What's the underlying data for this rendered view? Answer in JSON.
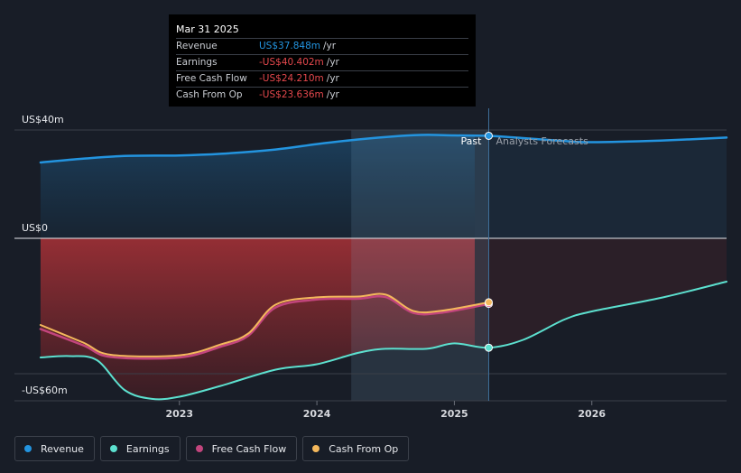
{
  "chart_data": {
    "type": "area",
    "title": "",
    "unit": "US$m",
    "y_axis_labels": [
      "US$40m",
      "US$0",
      "-US$60m"
    ],
    "ylim": [
      -60,
      40
    ],
    "x_ticks": [
      "2023",
      "2024",
      "2025",
      "2026"
    ],
    "x_tick_values": [
      2023.0,
      2024.0,
      2025.0,
      2026.0
    ],
    "xlim": [
      2021.8,
      2026.98
    ],
    "past_label": "Past",
    "forecast_label": "Analysts Forecasts",
    "past_end": 2025.25,
    "highlight_start": 2024.25,
    "series": [
      {
        "name": "Revenue",
        "color": "#2394df",
        "values": [
          [
            2021.99,
            28
          ],
          [
            2022.3,
            29.4
          ],
          [
            2022.6,
            30.4
          ],
          [
            2023.0,
            30.6
          ],
          [
            2023.3,
            31.2
          ],
          [
            2023.7,
            32.8
          ],
          [
            2024.0,
            34.8
          ],
          [
            2024.3,
            36.5
          ],
          [
            2024.6,
            37.8
          ],
          [
            2024.8,
            38.2
          ],
          [
            2025.0,
            38.0
          ],
          [
            2025.25,
            37.85
          ],
          [
            2025.5,
            37.0
          ],
          [
            2025.8,
            35.9
          ],
          [
            2026.0,
            35.5
          ],
          [
            2026.5,
            36.1
          ],
          [
            2026.98,
            37.2
          ]
        ]
      },
      {
        "name": "Earnings",
        "color": "#5ce0cf",
        "values": [
          [
            2021.99,
            -44
          ],
          [
            2022.2,
            -43.5
          ],
          [
            2022.4,
            -45
          ],
          [
            2022.6,
            -56
          ],
          [
            2022.8,
            -59.3
          ],
          [
            2023.0,
            -58.5
          ],
          [
            2023.3,
            -54.5
          ],
          [
            2023.7,
            -48.5
          ],
          [
            2024.0,
            -46.5
          ],
          [
            2024.3,
            -42.3
          ],
          [
            2024.5,
            -40.8
          ],
          [
            2024.8,
            -40.8
          ],
          [
            2025.0,
            -38.8
          ],
          [
            2025.25,
            -40.4
          ],
          [
            2025.5,
            -37.5
          ],
          [
            2025.8,
            -30
          ],
          [
            2026.0,
            -27
          ],
          [
            2026.5,
            -22
          ],
          [
            2026.98,
            -16
          ]
        ]
      },
      {
        "name": "Free Cash Flow",
        "color": "#c2457d",
        "values": [
          [
            2021.99,
            -33.5
          ],
          [
            2022.3,
            -39.5
          ],
          [
            2022.5,
            -43.8
          ],
          [
            2023.0,
            -44
          ],
          [
            2023.3,
            -40
          ],
          [
            2023.5,
            -36
          ],
          [
            2023.7,
            -25.5
          ],
          [
            2024.0,
            -22.6
          ],
          [
            2024.3,
            -22.3
          ],
          [
            2024.5,
            -21.7
          ],
          [
            2024.7,
            -27.5
          ],
          [
            2024.9,
            -27.5
          ],
          [
            2025.25,
            -24.21
          ]
        ]
      },
      {
        "name": "Cash From Op",
        "color": "#f4b85c",
        "values": [
          [
            2021.99,
            -32
          ],
          [
            2022.3,
            -38.5
          ],
          [
            2022.5,
            -43.0
          ],
          [
            2023.0,
            -43.2
          ],
          [
            2023.3,
            -39.2
          ],
          [
            2023.5,
            -35.2
          ],
          [
            2023.7,
            -24.5
          ],
          [
            2024.0,
            -21.8
          ],
          [
            2024.3,
            -21.5
          ],
          [
            2024.5,
            -20.8
          ],
          [
            2024.7,
            -26.8
          ],
          [
            2024.9,
            -26.8
          ],
          [
            2025.25,
            -23.64
          ]
        ]
      }
    ]
  },
  "tooltip": {
    "date": "Mar 31 2025",
    "rows": [
      {
        "label": "Revenue",
        "value": "US$37.848m",
        "unit": "/yr",
        "color": "#2394df"
      },
      {
        "label": "Earnings",
        "value": "-US$40.402m",
        "unit": "/yr",
        "color": "#e5484d"
      },
      {
        "label": "Free Cash Flow",
        "value": "-US$24.210m",
        "unit": "/yr",
        "color": "#e5484d"
      },
      {
        "label": "Cash From Op",
        "value": "-US$23.636m",
        "unit": "/yr",
        "color": "#e5484d"
      }
    ]
  },
  "legend": [
    {
      "label": "Revenue",
      "color": "#2394df"
    },
    {
      "label": "Earnings",
      "color": "#5ce0cf"
    },
    {
      "label": "Free Cash Flow",
      "color": "#c2457d"
    },
    {
      "label": "Cash From Op",
      "color": "#f4b85c"
    }
  ]
}
